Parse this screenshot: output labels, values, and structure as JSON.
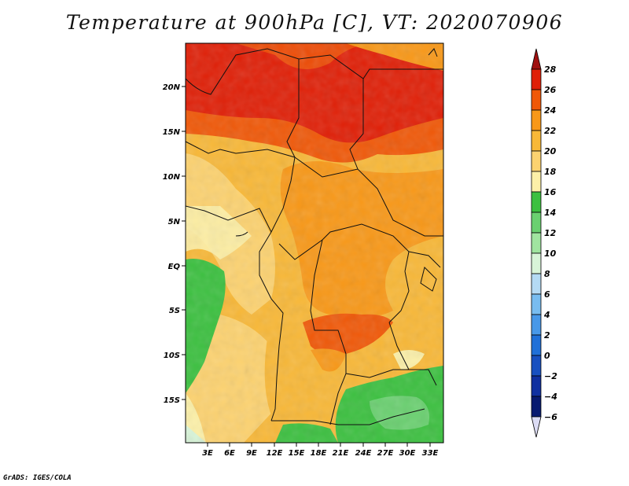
{
  "title": "Temperature at 900hPa [C], VT: 2020070906",
  "footer": "GrADS: IGES/COLA",
  "map": {
    "lat_labels": [
      "20N",
      "15N",
      "10N",
      "5N",
      "EQ",
      "5S",
      "10S",
      "15S"
    ],
    "lon_labels": [
      "3E",
      "6E",
      "9E",
      "12E",
      "15E",
      "18E",
      "21E",
      "24E",
      "27E",
      "30E",
      "33E"
    ]
  },
  "colorbar": {
    "labels": [
      "28",
      "26",
      "24",
      "22",
      "20",
      "18",
      "16",
      "14",
      "12",
      "10",
      "8",
      "6",
      "4",
      "2",
      "0",
      "−2",
      "−4",
      "−6"
    ],
    "colors": [
      "#a01010",
      "#e02008",
      "#f05808",
      "#f89818",
      "#f8b838",
      "#fcd270",
      "#fcf0a8",
      "#3cc040",
      "#6ad070",
      "#a0e4a0",
      "#d8f4d8",
      "#b4daf4",
      "#78bcf0",
      "#4898e8",
      "#2070d8",
      "#1850c0",
      "#1030a0",
      "#081a70",
      "#dcdcf4"
    ]
  }
}
